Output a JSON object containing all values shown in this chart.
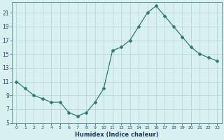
{
  "x": [
    0,
    1,
    2,
    3,
    4,
    5,
    6,
    7,
    8,
    9,
    10,
    11,
    12,
    13,
    14,
    15,
    16,
    17,
    18,
    19,
    20,
    21,
    22,
    23
  ],
  "y": [
    11,
    10,
    9,
    8.5,
    8,
    8,
    6.5,
    6,
    6.5,
    8,
    10,
    15.5,
    16,
    17,
    19,
    21,
    22,
    20.5,
    19,
    17.5,
    16,
    15,
    14.5,
    14
  ],
  "xlabel": "Humidex (Indice chaleur)",
  "line_color": "#2e7d6e",
  "marker": "D",
  "marker_size": 2.0,
  "bg_color": "#d8f0f0",
  "grid_color": "#b8d8d8",
  "xlim": [
    -0.5,
    23.5
  ],
  "ylim": [
    5,
    22.5
  ],
  "yticks": [
    5,
    7,
    9,
    11,
    13,
    15,
    17,
    19,
    21
  ],
  "xtick_labels": [
    "0",
    "1",
    "2",
    "3",
    "4",
    "5",
    "6",
    "7",
    "8",
    "9",
    "10",
    "11",
    "12",
    "13",
    "14",
    "15",
    "16",
    "17",
    "18",
    "19",
    "20",
    "21",
    "22",
    "23"
  ]
}
